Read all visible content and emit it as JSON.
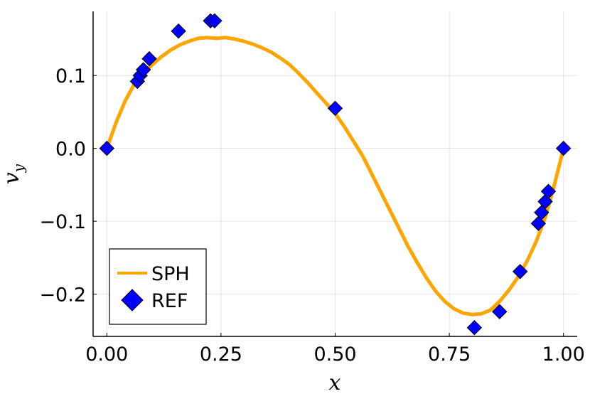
{
  "chart_data": {
    "type": "line",
    "xlabel": "x",
    "ylabel_main": "v",
    "ylabel_sub": "y",
    "xlim": [
      -0.03,
      1.03
    ],
    "ylim": [
      -0.258,
      0.188
    ],
    "xticks": [
      0.0,
      0.25,
      0.5,
      0.75,
      1.0
    ],
    "xtick_labels": [
      "0.00",
      "0.25",
      "0.50",
      "0.75",
      "1.00"
    ],
    "yticks": [
      -0.2,
      -0.1,
      0.0,
      0.1
    ],
    "ytick_labels": [
      "−0.2",
      "−0.1",
      "0.0",
      "0.1"
    ],
    "grid": true,
    "legend_position": "bottom-left",
    "series": [
      {
        "name": "SPH",
        "kind": "line",
        "color": "#FFA500",
        "x": [
          0.0,
          0.02,
          0.04,
          0.06,
          0.08,
          0.1,
          0.12,
          0.14,
          0.16,
          0.18,
          0.2,
          0.22,
          0.24,
          0.26,
          0.28,
          0.3,
          0.32,
          0.34,
          0.36,
          0.38,
          0.4,
          0.42,
          0.44,
          0.46,
          0.48,
          0.5,
          0.52,
          0.54,
          0.56,
          0.58,
          0.6,
          0.62,
          0.64,
          0.66,
          0.68,
          0.7,
          0.72,
          0.74,
          0.76,
          0.78,
          0.8,
          0.82,
          0.84,
          0.86,
          0.88,
          0.9,
          0.92,
          0.94,
          0.96,
          0.98,
          1.0
        ],
        "y": [
          0.0,
          0.035,
          0.065,
          0.088,
          0.103,
          0.115,
          0.126,
          0.135,
          0.142,
          0.147,
          0.151,
          0.152,
          0.151,
          0.152,
          0.15,
          0.147,
          0.143,
          0.138,
          0.132,
          0.124,
          0.115,
          0.103,
          0.09,
          0.076,
          0.062,
          0.048,
          0.03,
          0.01,
          -0.01,
          -0.035,
          -0.06,
          -0.085,
          -0.11,
          -0.135,
          -0.157,
          -0.178,
          -0.196,
          -0.21,
          -0.22,
          -0.226,
          -0.228,
          -0.227,
          -0.222,
          -0.21,
          -0.195,
          -0.177,
          -0.155,
          -0.128,
          -0.095,
          -0.05,
          0.0
        ]
      },
      {
        "name": "REF",
        "kind": "scatter",
        "marker": "diamond",
        "color": "#0000FF",
        "x": [
          0.0,
          0.067,
          0.073,
          0.08,
          0.093,
          0.157,
          0.227,
          0.236,
          0.5,
          0.805,
          0.86,
          0.905,
          0.945,
          0.952,
          0.96,
          0.967,
          1.0
        ],
        "y": [
          0.0,
          0.092,
          0.1,
          0.108,
          0.123,
          0.161,
          0.175,
          0.175,
          0.055,
          -0.246,
          -0.224,
          -0.169,
          -0.103,
          -0.088,
          -0.073,
          -0.059,
          0.0
        ]
      }
    ]
  }
}
